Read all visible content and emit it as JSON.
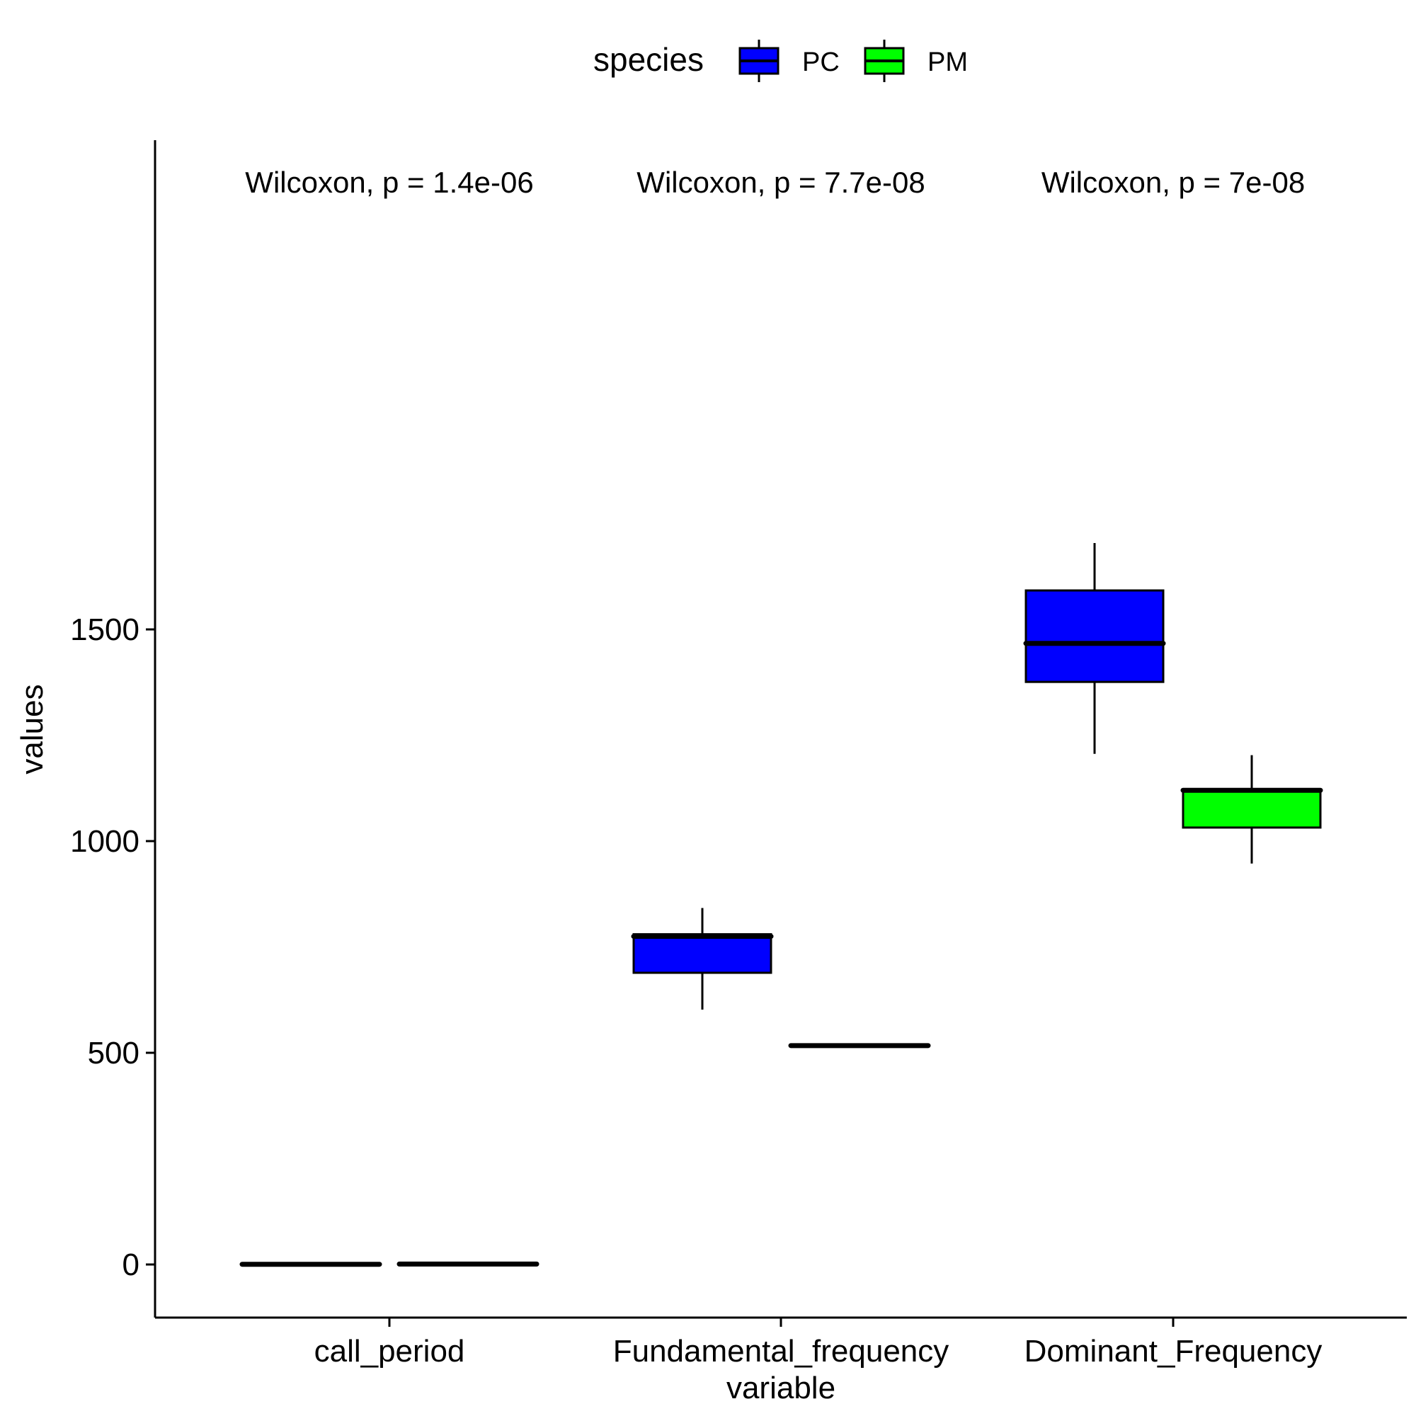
{
  "chart_data": {
    "type": "boxplot",
    "xlabel": "variable",
    "ylabel": "values",
    "ylim": [
      -85,
      1770
    ],
    "y_ticks": [
      0,
      500,
      1000,
      1500
    ],
    "grid": false,
    "legend": {
      "title": "species",
      "position": "top",
      "entries": [
        {
          "name": "PC",
          "color": "#0000FF"
        },
        {
          "name": "PM",
          "color": "#00FF00"
        }
      ]
    },
    "categories": [
      "call_period",
      "Fundamental_frequency",
      "Dominant_Frequency"
    ],
    "series": [
      {
        "name": "PC",
        "color": "#0000FF",
        "boxes": [
          {
            "min": 0.5,
            "q1": 0.5,
            "median": 0.5,
            "q3": 0.5,
            "max": 0.5
          },
          {
            "min": 602,
            "q1": 689,
            "median": 775,
            "q3": 780,
            "max": 842
          },
          {
            "min": 1206,
            "q1": 1376,
            "median": 1467,
            "q3": 1592,
            "max": 1704
          }
        ]
      },
      {
        "name": "PM",
        "color": "#00FF00",
        "boxes": [
          {
            "min": 1,
            "q1": 1,
            "median": 1,
            "q3": 1,
            "max": 1
          },
          {
            "min": 517,
            "q1": 517,
            "median": 517,
            "q3": 517,
            "max": 517
          },
          {
            "min": 947,
            "q1": 1032,
            "median": 1120,
            "q3": 1122,
            "max": 1203
          }
        ]
      }
    ],
    "annotations": [
      {
        "category": "call_period",
        "text": "Wilcoxon, p = 1.4e-06"
      },
      {
        "category": "Fundamental_frequency",
        "text": "Wilcoxon, p = 7.7e-08"
      },
      {
        "category": "Dominant_Frequency",
        "text": "Wilcoxon, p = 7e-08"
      }
    ]
  }
}
